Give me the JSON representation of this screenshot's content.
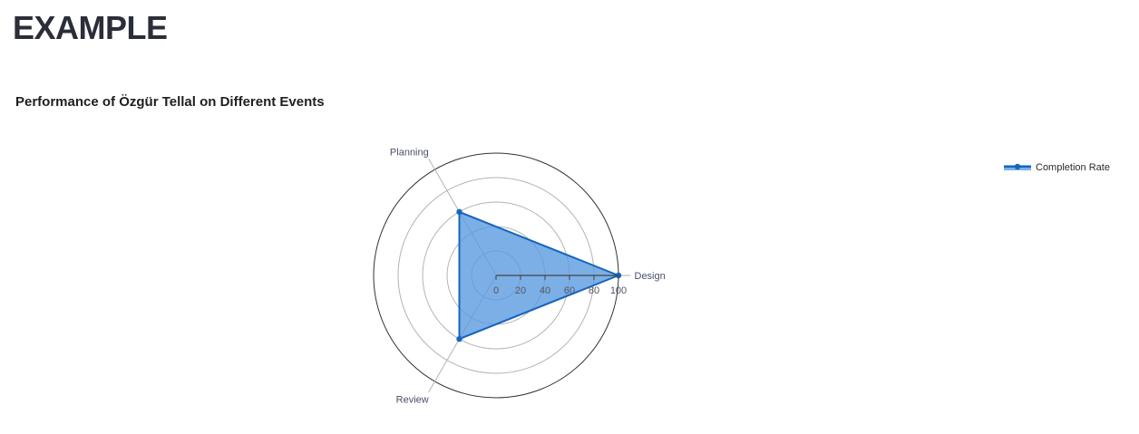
{
  "page": {
    "title": "EXAMPLE"
  },
  "chart_data": {
    "type": "radar",
    "title": "Performance of Özgür Tellal on Different Events",
    "categories": [
      "Design",
      "Planning",
      "Review"
    ],
    "series": [
      {
        "name": "Completion Rate",
        "values": [
          100,
          60,
          60
        ],
        "color": "#1565c0",
        "fill": "#5b9be0"
      }
    ],
    "radial_range": [
      0,
      100
    ],
    "radial_ticks": [
      0,
      20,
      40,
      60,
      80,
      100
    ],
    "tick_labels": [
      "0",
      "20",
      "40",
      "60",
      "80",
      "100"
    ],
    "legend_position": "top-right",
    "grid": true
  }
}
